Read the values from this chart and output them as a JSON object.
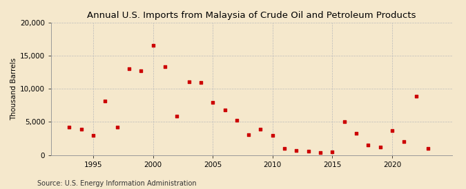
{
  "title": "Annual U.S. Imports from Malaysia of Crude Oil and Petroleum Products",
  "ylabel": "Thousand Barrels",
  "source": "Source: U.S. Energy Information Administration",
  "background_color": "#f5e8cc",
  "marker_color": "#cc0000",
  "years": [
    1993,
    1994,
    1995,
    1996,
    1997,
    1998,
    1999,
    2000,
    2001,
    2002,
    2003,
    2004,
    2005,
    2006,
    2007,
    2008,
    2009,
    2010,
    2011,
    2012,
    2013,
    2014,
    2015,
    2016,
    2017,
    2018,
    2019,
    2020,
    2021,
    2022,
    2023
  ],
  "values": [
    4200,
    3900,
    3000,
    8200,
    4200,
    13000,
    12700,
    16600,
    13400,
    5900,
    11100,
    11000,
    7900,
    6800,
    5200,
    3100,
    3900,
    3000,
    1000,
    700,
    600,
    350,
    500,
    5000,
    3300,
    1500,
    1200,
    3700,
    2000,
    8900,
    1000
  ],
  "xlim": [
    1991.5,
    2025
  ],
  "ylim": [
    0,
    20000
  ],
  "yticks": [
    0,
    5000,
    10000,
    15000,
    20000
  ],
  "xticks": [
    1995,
    2000,
    2005,
    2010,
    2015,
    2020
  ],
  "grid_color": "#bbbbbb",
  "title_fontsize": 9.5,
  "axis_fontsize": 7.5,
  "source_fontsize": 7
}
